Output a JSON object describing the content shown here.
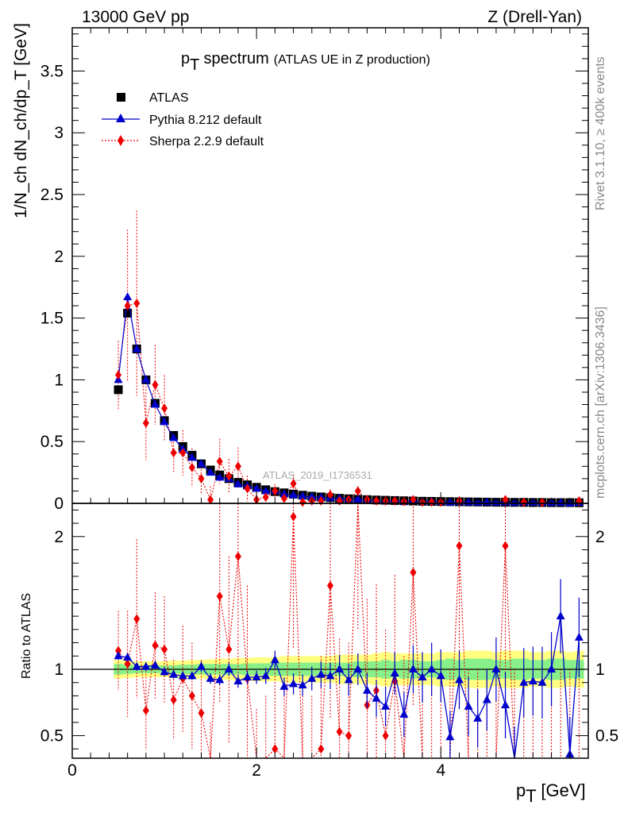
{
  "header": {
    "left": "13000 GeV pp",
    "right": "Z (Drell-Yan)"
  },
  "side_labels": {
    "rivet": "Rivet 3.1.10, ≥ 400k events",
    "mcplots": "mcplots.cern.ch [arXiv:1306.3436]"
  },
  "chart_data": {
    "type": "line",
    "title": "p",
    "title_sub": "T",
    "title_rest": " spectrum",
    "subtitle": "(ATLAS UE in Z production)",
    "watermark": "ATLAS_2019_I1736531",
    "xlabel": "p",
    "xlabel_sub": "T",
    "xlabel_rest": " [GeV]",
    "ylabel": "1/N_ch dN_ch/dp_T [GeV]",
    "ratio_ylabel": "Ratio to ATLAS",
    "xlim": [
      0,
      5.6
    ],
    "ylim": [
      0,
      3.85
    ],
    "ratio_ylim": [
      0.33,
      2.25
    ],
    "x_ticks": [
      0,
      2,
      4
    ],
    "y_ticks": [
      0,
      0.5,
      1,
      1.5,
      2,
      2.5,
      3,
      3.5
    ],
    "y_tick_labels": [
      "0",
      "0.5",
      "1",
      "1.5",
      "2",
      "2.5",
      "3",
      "3.5"
    ],
    "ratio_ticks": [
      0.5,
      1,
      2
    ],
    "ratio_tick_labels": [
      "0.5",
      "1",
      "2"
    ],
    "legend": [
      {
        "label": "ATLAS"
      },
      {
        "label": "Pythia 8.212 default"
      },
      {
        "label": "Sherpa 2.2.9 default"
      }
    ],
    "x": [
      0.5,
      0.6,
      0.7,
      0.8,
      0.9,
      1.0,
      1.1,
      1.2,
      1.3,
      1.4,
      1.5,
      1.6,
      1.7,
      1.8,
      1.9,
      2.0,
      2.1,
      2.2,
      2.3,
      2.4,
      2.5,
      2.6,
      2.7,
      2.8,
      2.9,
      3.0,
      3.1,
      3.2,
      3.3,
      3.4,
      3.5,
      3.6,
      3.7,
      3.8,
      3.9,
      4.0,
      4.1,
      4.2,
      4.3,
      4.4,
      4.5,
      4.6,
      4.7,
      4.8,
      4.9,
      5.0,
      5.1,
      5.2,
      5.3,
      5.4,
      5.5
    ],
    "series": [
      {
        "name": "ATLAS",
        "color": "#000000",
        "values": [
          0.92,
          1.54,
          1.25,
          1.0,
          0.81,
          0.67,
          0.55,
          0.46,
          0.39,
          0.32,
          0.27,
          0.23,
          0.2,
          0.17,
          0.15,
          0.13,
          0.11,
          0.095,
          0.085,
          0.075,
          0.066,
          0.058,
          0.052,
          0.046,
          0.041,
          0.037,
          0.033,
          0.03,
          0.027,
          0.025,
          0.023,
          0.021,
          0.019,
          0.017,
          0.016,
          0.015,
          0.014,
          0.013,
          0.012,
          0.011,
          0.01,
          0.009,
          0.009,
          0.008,
          0.008,
          0.007,
          0.007,
          0.006,
          0.006,
          0.006,
          0.005
        ]
      },
      {
        "name": "Pythia 8.212 default",
        "color": "#0000cc",
        "values": [
          1.0,
          1.67,
          1.25,
          1.0,
          0.8,
          0.66,
          0.53,
          0.44,
          0.37,
          0.32,
          0.25,
          0.21,
          0.2,
          0.155,
          0.14,
          0.12,
          0.1,
          0.1,
          0.075,
          0.066,
          0.058,
          0.054,
          0.048,
          0.043,
          0.041,
          0.034,
          0.033,
          0.025,
          0.021,
          0.018,
          0.022,
          0.015,
          0.019,
          0.016,
          0.016,
          0.014,
          0.007,
          0.012,
          0.008,
          0.007,
          0.01,
          0.007,
          0.009,
          0.006,
          0.008,
          0.008,
          0.007,
          0.006,
          0.006,
          0.002,
          0.006
        ],
        "ratio": [
          1.1,
          1.09,
          1.02,
          1.02,
          1.03,
          0.98,
          0.96,
          0.95,
          0.95,
          1.02,
          0.93,
          0.92,
          1.0,
          0.91,
          0.94,
          0.94,
          0.95,
          1.07,
          0.87,
          0.89,
          0.88,
          0.93,
          0.96,
          0.95,
          1.0,
          0.92,
          1.0,
          0.84,
          0.78,
          0.72,
          0.97,
          0.66,
          1.0,
          0.94,
          1.0,
          0.95,
          0.49,
          0.92,
          0.72,
          0.63,
          0.77,
          1.0,
          0.73,
          0.32,
          0.9,
          0.91,
          0.9,
          1.0,
          1.4,
          0.36,
          1.24
        ],
        "ratio_err": [
          0.03,
          0.03,
          0.03,
          0.03,
          0.03,
          0.03,
          0.03,
          0.03,
          0.03,
          0.04,
          0.04,
          0.04,
          0.05,
          0.05,
          0.05,
          0.05,
          0.06,
          0.07,
          0.07,
          0.08,
          0.08,
          0.09,
          0.1,
          0.1,
          0.11,
          0.12,
          0.12,
          0.13,
          0.14,
          0.15,
          0.16,
          0.17,
          0.18,
          0.19,
          0.2,
          0.2,
          0.2,
          0.22,
          0.22,
          0.22,
          0.23,
          0.24,
          0.25,
          0.25,
          0.26,
          0.26,
          0.27,
          0.28,
          0.28,
          0.28,
          0.3
        ]
      },
      {
        "name": "Sherpa 2.2.9 default",
        "color": "#ee0000",
        "values": [
          1.04,
          1.6,
          1.62,
          0.65,
          0.96,
          0.77,
          0.41,
          0.41,
          0.29,
          0.2,
          0.03,
          0.34,
          0.22,
          0.3,
          0.12,
          0.03,
          0.05,
          0.1,
          0.04,
          0.16,
          0.01,
          0.02,
          0.02,
          0.07,
          0.02,
          0.03,
          0.1,
          0.03,
          0.02,
          0.019,
          0.02,
          0.015,
          0.03,
          0.01,
          0.01,
          0.01,
          0.005,
          0.02,
          0.005,
          0.005,
          0.005,
          0.004,
          0.03,
          0.004,
          0.01,
          0.005,
          0.008,
          0.006,
          0.005,
          0.005,
          0.02
        ],
        "ratio": [
          1.14,
          1.04,
          1.38,
          0.69,
          1.18,
          1.15,
          0.77,
          0.93,
          0.8,
          0.67,
          0.2,
          1.55,
          1.15,
          1.85,
          0.93,
          0.2,
          0.3,
          0.4,
          0.3,
          2.15,
          0.2,
          0.2,
          0.4,
          1.63,
          0.53,
          0.5,
          2.5,
          0.73,
          0.84,
          0.5,
          0.91,
          0.3,
          1.73,
          0.2,
          0.2,
          0.2,
          0.2,
          1.93,
          0.2,
          0.2,
          0.2,
          0.2,
          1.93,
          0.2,
          0.2,
          0.2,
          0.2,
          0.2,
          0.2,
          0.2,
          0.2
        ],
        "ratio_err": [
          0.3,
          0.4,
          0.6,
          0.3,
          0.4,
          0.4,
          0.3,
          0.4,
          0.4,
          0.4,
          0.4,
          0.8,
          0.7,
          0.9,
          0.7,
          0.5,
          0.5,
          0.6,
          0.6,
          1.0,
          0.6,
          0.6,
          0.7,
          1.0,
          0.7,
          0.7,
          1.2,
          0.8,
          0.8,
          0.8,
          0.8,
          0.8,
          1.0,
          0.8,
          0.8,
          0.8,
          0.8,
          1.2,
          0.8,
          0.8,
          0.8,
          0.8,
          1.2,
          0.8,
          0.8,
          0.8,
          0.8,
          0.8,
          0.8,
          0.8,
          0.8
        ]
      }
    ],
    "band_inner": [
      0.04,
      0.035,
      0.03,
      0.03,
      0.03,
      0.03,
      0.03,
      0.035,
      0.035,
      0.04,
      0.04,
      0.04,
      0.04,
      0.04,
      0.045,
      0.045,
      0.045,
      0.05,
      0.05,
      0.05,
      0.05,
      0.05,
      0.05,
      0.05,
      0.05,
      0.05,
      0.06,
      0.06,
      0.06,
      0.07,
      0.06,
      0.07,
      0.07,
      0.06,
      0.06,
      0.07,
      0.08,
      0.07,
      0.08,
      0.08,
      0.08,
      0.07,
      0.07,
      0.08,
      0.08,
      0.07,
      0.07,
      0.08,
      0.08,
      0.07,
      0.07
    ],
    "band_outer": [
      0.07,
      0.065,
      0.06,
      0.06,
      0.06,
      0.06,
      0.065,
      0.065,
      0.07,
      0.07,
      0.075,
      0.08,
      0.08,
      0.085,
      0.085,
      0.09,
      0.09,
      0.09,
      0.1,
      0.1,
      0.1,
      0.1,
      0.1,
      0.1,
      0.11,
      0.11,
      0.11,
      0.11,
      0.12,
      0.13,
      0.12,
      0.12,
      0.12,
      0.12,
      0.12,
      0.13,
      0.13,
      0.13,
      0.14,
      0.14,
      0.14,
      0.13,
      0.14,
      0.14,
      0.14,
      0.13,
      0.13,
      0.14,
      0.14,
      0.13,
      0.14
    ],
    "colors": {
      "band_inner": "#88f088",
      "band_outer": "#ffff80"
    }
  }
}
